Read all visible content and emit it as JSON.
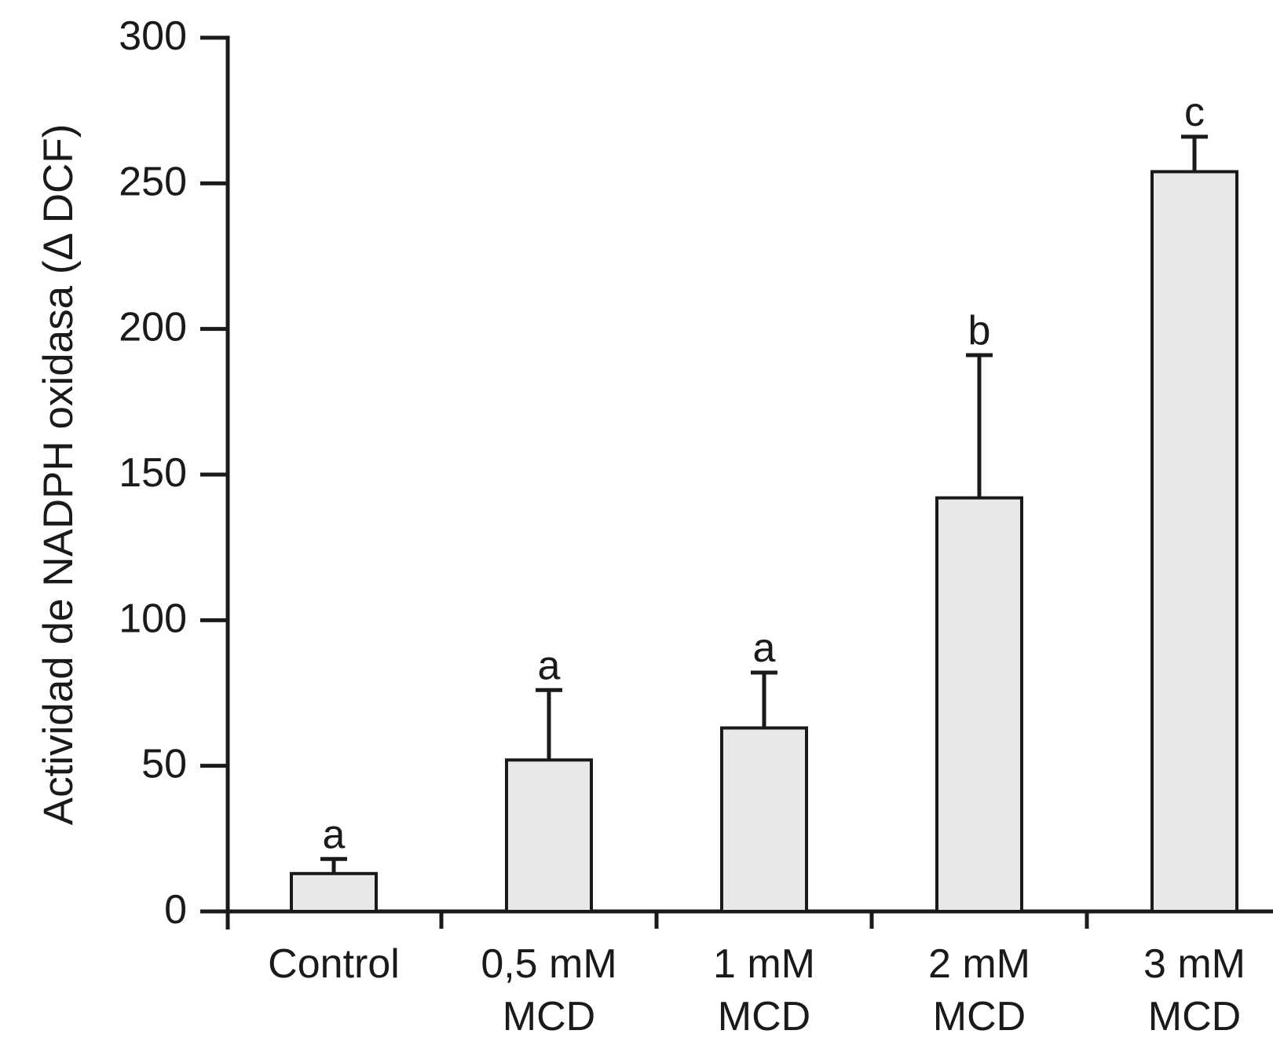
{
  "chart_data": {
    "type": "bar",
    "title": "",
    "xlabel": "",
    "ylabel": "Actividad de NADPH oxidasa (Δ DCF)",
    "ylim": [
      0,
      300
    ],
    "yticks": [
      0,
      50,
      100,
      150,
      200,
      250,
      300
    ],
    "grid": false,
    "legend": "none",
    "categories": [
      [
        "Control"
      ],
      [
        "0,5 mM",
        "MCD"
      ],
      [
        "1 mM",
        "MCD"
      ],
      [
        "2 mM",
        "MCD"
      ],
      [
        "3 mM",
        "MCD"
      ]
    ],
    "values": [
      13,
      52,
      63,
      142,
      254
    ],
    "upper_errors": [
      5,
      24,
      19,
      49,
      12
    ],
    "sig_letters": [
      "a",
      "a",
      "a",
      "b",
      "c"
    ],
    "bar_fill": "#e8e8e8",
    "line_color": "#1a1a1a",
    "background": "#ffffff"
  }
}
